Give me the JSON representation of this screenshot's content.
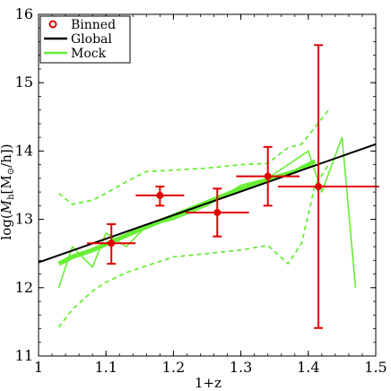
{
  "chart_data": {
    "type": "scatter",
    "xlabel": "1+z",
    "ylabel": "log(M_h[M_⊙/h])",
    "xlim": [
      1.0,
      1.5
    ],
    "ylim": [
      11,
      16
    ],
    "xticks": [
      "1",
      "1.1",
      "1.2",
      "1.3",
      "1.4",
      "1.5"
    ],
    "yticks": [
      "11",
      "12",
      "13",
      "14",
      "15",
      "16"
    ],
    "grid": false,
    "legend": {
      "placement": "top-left",
      "entries": [
        {
          "label": "Binned",
          "style": "circle-marker",
          "color": "#e00000"
        },
        {
          "label": "Global",
          "style": "line",
          "color": "#000000"
        },
        {
          "label": "Mock",
          "style": "line",
          "color": "#66ee33"
        }
      ]
    },
    "series": [
      {
        "name": "Binned",
        "color": "#e00000",
        "points": [
          {
            "x": 1.108,
            "y": 12.65,
            "xerr": 0.036,
            "yerr_low": 0.3,
            "yerr_high": 0.28
          },
          {
            "x": 1.18,
            "y": 13.35,
            "xerr": 0.036,
            "yerr_low": 0.15,
            "yerr_high": 0.13
          },
          {
            "x": 1.265,
            "y": 13.1,
            "xerr": 0.047,
            "yerr_low": 0.35,
            "yerr_high": 0.35
          },
          {
            "x": 1.34,
            "y": 13.63,
            "xerr": 0.047,
            "yerr_low": 0.43,
            "yerr_high": 0.43
          },
          {
            "x": 1.415,
            "y": 13.48,
            "xerr_low": 0.06,
            "xerr_high": 0.09,
            "yerr_low": 2.07,
            "yerr_high": 2.07
          }
        ]
      },
      {
        "name": "Global",
        "color": "#000000",
        "x": [
          1.0,
          1.5
        ],
        "y": [
          12.37,
          14.1
        ]
      },
      {
        "name": "Mock",
        "color": "#66ee33",
        "x": [
          1.03,
          1.05,
          1.08,
          1.11,
          1.15,
          1.2,
          1.25,
          1.3,
          1.34,
          1.38,
          1.41
        ],
        "y": [
          12.35,
          12.45,
          12.55,
          12.68,
          12.85,
          13.05,
          13.25,
          13.45,
          13.58,
          13.7,
          13.85
        ]
      },
      {
        "name": "Mock spread",
        "color": "#66ee33",
        "x": [
          1.03,
          1.05,
          1.08,
          1.1,
          1.13,
          1.16,
          1.2,
          1.25,
          1.3,
          1.34,
          1.37,
          1.4,
          1.42,
          1.45,
          1.47
        ],
        "y": [
          12.0,
          12.6,
          12.3,
          12.8,
          12.6,
          12.9,
          13.0,
          13.2,
          13.5,
          13.6,
          13.8,
          14.0,
          13.4,
          14.2,
          12.0
        ]
      },
      {
        "name": "Mock upper bound",
        "color": "#66ee33",
        "dashed": true,
        "x": [
          1.03,
          1.05,
          1.08,
          1.1,
          1.13,
          1.16,
          1.2,
          1.25,
          1.3,
          1.34,
          1.37,
          1.39,
          1.41,
          1.43
        ],
        "y": [
          13.38,
          13.22,
          13.28,
          13.38,
          13.55,
          13.7,
          13.72,
          13.75,
          13.8,
          13.82,
          14.05,
          14.1,
          14.35,
          14.6
        ]
      },
      {
        "name": "Mock lower bound",
        "color": "#66ee33",
        "dashed": true,
        "x": [
          1.03,
          1.05,
          1.08,
          1.1,
          1.13,
          1.16,
          1.2,
          1.25,
          1.3,
          1.34,
          1.37,
          1.39,
          1.41,
          1.43
        ],
        "y": [
          11.42,
          11.68,
          11.95,
          12.08,
          12.22,
          12.32,
          12.45,
          12.5,
          12.55,
          12.62,
          12.35,
          12.65,
          13.5,
          13.8
        ]
      }
    ]
  }
}
